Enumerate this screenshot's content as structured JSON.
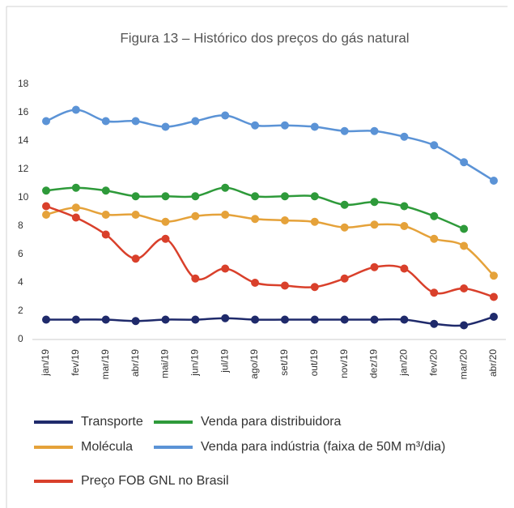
{
  "chart_data": {
    "type": "line",
    "title": "Figura 13 – Histórico dos preços do gás natural",
    "categories": [
      "jan/19",
      "fev/19",
      "mar/19",
      "abr/19",
      "mai/19",
      "jun/19",
      "jul/19",
      "ago/19",
      "set/19",
      "out/19",
      "nov/19",
      "dez/19",
      "jan/20",
      "fev/20",
      "mar/20",
      "abr/20"
    ],
    "series": [
      {
        "name": "Transporte",
        "color": "#1f2a6b",
        "values": [
          1.4,
          1.4,
          1.4,
          1.3,
          1.4,
          1.4,
          1.5,
          1.4,
          1.4,
          1.4,
          1.4,
          1.4,
          1.4,
          1.1,
          1.0,
          1.6
        ]
      },
      {
        "name": "Venda para distribuidora",
        "color": "#2e9a3a",
        "values": [
          10.5,
          10.7,
          10.5,
          10.1,
          10.1,
          10.1,
          10.7,
          10.1,
          10.1,
          10.1,
          9.5,
          9.7,
          9.4,
          8.7,
          7.8,
          null
        ]
      },
      {
        "name": "Molécula",
        "color": "#e5a23a",
        "values": [
          8.8,
          9.3,
          8.8,
          8.8,
          8.3,
          8.7,
          8.8,
          8.5,
          8.4,
          8.3,
          7.9,
          8.1,
          8.0,
          7.1,
          6.6,
          4.5
        ]
      },
      {
        "name": "Venda para indústria (faixa de 50M m³/dia)",
        "color": "#5b93d6",
        "values": [
          15.4,
          16.2,
          15.4,
          15.4,
          15.0,
          15.4,
          15.8,
          15.1,
          15.1,
          15.0,
          14.7,
          14.7,
          14.3,
          13.7,
          12.5,
          11.2
        ]
      },
      {
        "name": "Preço FOB GNL no Brasil",
        "color": "#d9402b",
        "values": [
          9.4,
          8.6,
          7.4,
          5.7,
          7.1,
          4.3,
          5.0,
          4.0,
          3.8,
          3.7,
          4.3,
          5.1,
          5.0,
          3.3,
          3.6,
          3.0
        ]
      }
    ],
    "ylim": [
      0,
      18
    ],
    "yticks": [
      0,
      2,
      4,
      6,
      8,
      10,
      12,
      14,
      16,
      18
    ],
    "grid": false
  }
}
